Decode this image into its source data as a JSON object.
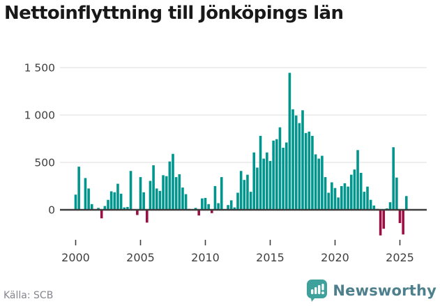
{
  "title": "Nettoinflyttning till Jönköpings län",
  "footer": {
    "source": "Källa: SCB"
  },
  "brand": {
    "name": "Newsworthy"
  },
  "colors": {
    "positive": "#00968e",
    "negative": "#9b1043",
    "grid": "#e8e8e8",
    "zero_line": "#3d3d3d",
    "axis_text": "#3f3f3f",
    "tick_mark": "#3f3f3f",
    "title_text": "#191919",
    "source_text": "#85858d",
    "brand_icon": "#3fa19c",
    "brand_text": "#4d7f8c"
  },
  "chart_data": {
    "type": "bar",
    "title": "Nettoinflyttning till Jönköpings län",
    "xlabel": "",
    "ylabel": "",
    "grid": true,
    "legend": false,
    "ylim": [
      -350,
      1550
    ],
    "yticks": [
      0,
      500,
      1000,
      1500
    ],
    "ytick_labels": [
      "0",
      "500",
      "1 000",
      "1 500"
    ],
    "xticks": [
      2000,
      2005,
      2010,
      2015,
      2020,
      2025
    ],
    "xtick_labels": [
      "2000",
      "2005",
      "2010",
      "2015",
      "2020",
      "2025"
    ],
    "categories": [
      "2000 K1",
      "2000 K2",
      "2000 K3",
      "2000 K4",
      "2001 K1",
      "2001 K2",
      "2001 K3",
      "2001 K4",
      "2002 K1",
      "2002 K2",
      "2002 K3",
      "2002 K4",
      "2003 K1",
      "2003 K2",
      "2003 K3",
      "2003 K4",
      "2004 K1",
      "2004 K2",
      "2004 K3",
      "2004 K4",
      "2005 K1",
      "2005 K2",
      "2005 K3",
      "2005 K4",
      "2006 K1",
      "2006 K2",
      "2006 K3",
      "2006 K4",
      "2007 K1",
      "2007 K2",
      "2007 K3",
      "2007 K4",
      "2008 K1",
      "2008 K2",
      "2008 K3",
      "2008 K4",
      "2009 K1",
      "2009 K2",
      "2009 K3",
      "2009 K4",
      "2010 K1",
      "2010 K2",
      "2010 K3",
      "2010 K4",
      "2011 K1",
      "2011 K2",
      "2011 K3",
      "2011 K4",
      "2012 K1",
      "2012 K2",
      "2012 K3",
      "2012 K4",
      "2013 K1",
      "2013 K2",
      "2013 K3",
      "2013 K4",
      "2014 K1",
      "2014 K2",
      "2014 K3",
      "2014 K4",
      "2015 K1",
      "2015 K2",
      "2015 K3",
      "2015 K4",
      "2016 K1",
      "2016 K2",
      "2016 K3",
      "2016 K4",
      "2017 K1",
      "2017 K2",
      "2017 K3",
      "2017 K4",
      "2018 K1",
      "2018 K2",
      "2018 K3",
      "2018 K4",
      "2019 K1",
      "2019 K2",
      "2019 K3",
      "2019 K4",
      "2020 K1",
      "2020 K2",
      "2020 K3",
      "2020 K4",
      "2021 K1",
      "2021 K2",
      "2021 K3",
      "2021 K4",
      "2022 K1",
      "2022 K2",
      "2022 K3",
      "2022 K4",
      "2023 K1",
      "2023 K2",
      "2023 K3",
      "2023 K4",
      "2024 K1",
      "2024 K2",
      "2024 K3",
      "2024 K4",
      "2025 K1",
      "2025 K2",
      "2025 K3"
    ],
    "values": [
      160,
      455,
      5,
      335,
      225,
      60,
      5,
      20,
      -90,
      40,
      105,
      195,
      185,
      275,
      170,
      25,
      30,
      410,
      5,
      -55,
      345,
      185,
      -135,
      305,
      470,
      225,
      200,
      365,
      355,
      510,
      590,
      345,
      375,
      235,
      165,
      10,
      5,
      20,
      -60,
      120,
      125,
      60,
      -35,
      250,
      70,
      345,
      5,
      50,
      100,
      25,
      180,
      410,
      315,
      370,
      190,
      605,
      445,
      780,
      540,
      605,
      515,
      730,
      745,
      870,
      655,
      710,
      1445,
      1060,
      995,
      915,
      1050,
      810,
      825,
      780,
      585,
      540,
      570,
      345,
      180,
      290,
      230,
      130,
      250,
      280,
      245,
      370,
      425,
      630,
      390,
      190,
      245,
      105,
      45,
      10,
      -270,
      -200,
      15,
      80,
      660,
      340,
      -140,
      -260,
      145
    ]
  }
}
